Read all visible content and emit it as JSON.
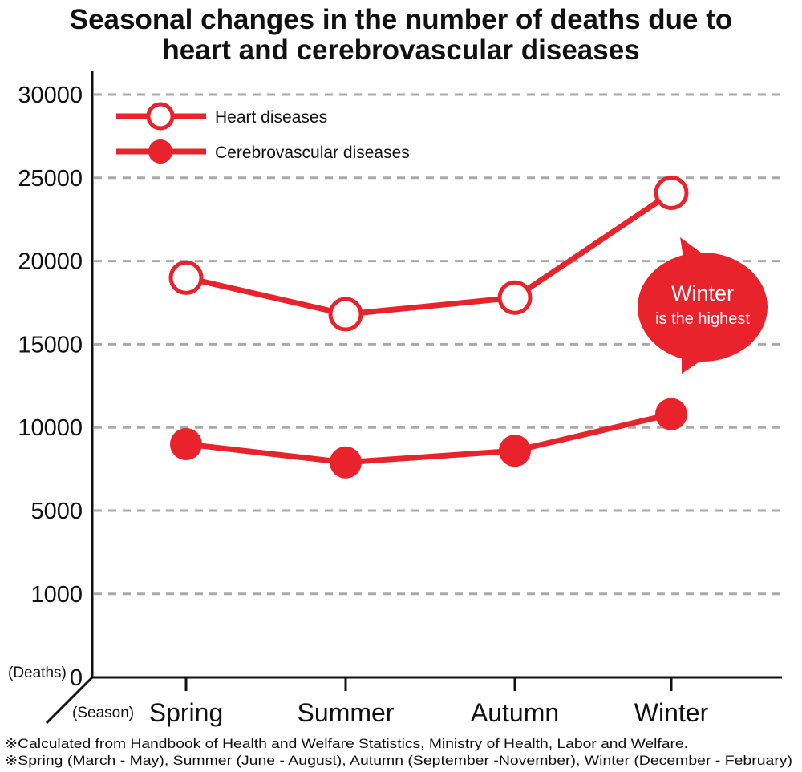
{
  "chart_data": {
    "type": "line",
    "title_line1": "Seasonal changes in the number of deaths due to",
    "title_line2": "heart and cerebrovascular diseases",
    "ylabel": "(Deaths)",
    "xlabel": "(Season)",
    "y_ticks": [
      "30000",
      "25000",
      "20000",
      "15000",
      "10000",
      "5000",
      "1000",
      "0"
    ],
    "categories": [
      "Spring",
      "Summer",
      "Autumn",
      "Winter"
    ],
    "series": [
      {
        "name": "Heart diseases",
        "marker": "open-circle",
        "color": "#e8232b",
        "values": [
          19000,
          16800,
          17800,
          24100
        ]
      },
      {
        "name": "Cerebrovascular diseases",
        "marker": "filled-circle",
        "color": "#e8232b",
        "values": [
          9000,
          7900,
          8600,
          10800
        ]
      }
    ],
    "grid": true,
    "legend_position": "top-left",
    "callout": {
      "line1": "Winter",
      "line2": "is the highest",
      "color": "#e8232b"
    },
    "notes": [
      "※Calculated from Handbook of Health and Welfare Statistics, Ministry of Health, Labor and Welfare.",
      "※Spring (March - May), Summer (June - August), Autumn (September -November), Winter (December - February)"
    ]
  }
}
